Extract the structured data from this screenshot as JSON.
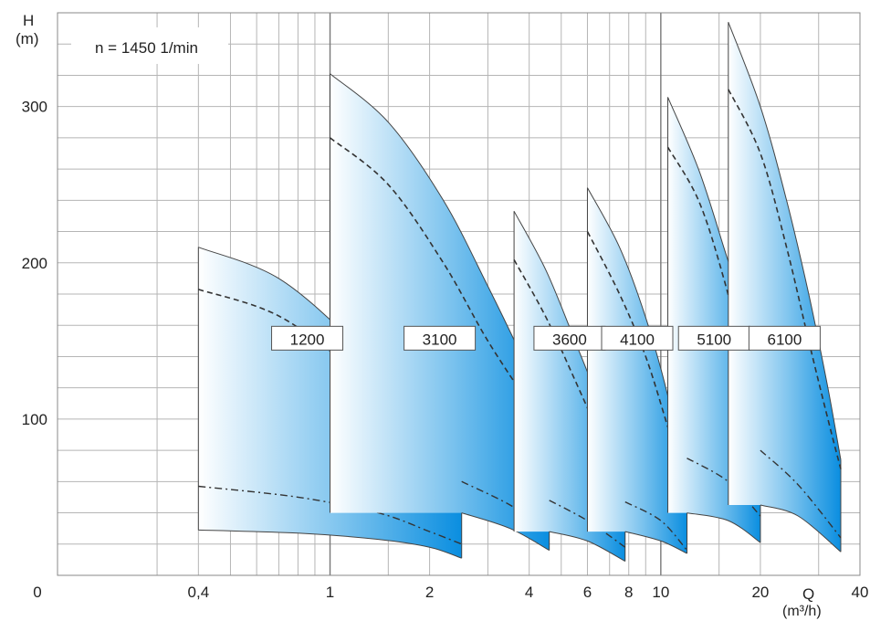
{
  "chart_data": {
    "type": "area",
    "speed_label": "n = 1450 1/min",
    "y_axis_title": "H",
    "y_axis_unit": "(m)",
    "x_axis_title": "Q",
    "x_axis_unit": "(m³/h)",
    "x_scale": "log",
    "xlim": [
      0.15,
      40
    ],
    "ylim": [
      0,
      360
    ],
    "x_ticks": [
      {
        "value": 0.15,
        "label": "0"
      },
      {
        "value": 0.4,
        "label": "0,4"
      },
      {
        "value": 1,
        "label": "1"
      },
      {
        "value": 2,
        "label": "2"
      },
      {
        "value": 4,
        "label": "4"
      },
      {
        "value": 6,
        "label": "6"
      },
      {
        "value": 8,
        "label": "8"
      },
      {
        "value": 10,
        "label": "10"
      },
      {
        "value": 20,
        "label": "20"
      },
      {
        "value": 40,
        "label": "40"
      }
    ],
    "y_ticks": [
      {
        "value": 100,
        "label": "100"
      },
      {
        "value": 200,
        "label": "200"
      },
      {
        "value": 300,
        "label": "300"
      }
    ],
    "x_grid": [
      0.3,
      0.4,
      0.5,
      0.6,
      0.7,
      0.8,
      0.9,
      1,
      1.5,
      2,
      3,
      4,
      5,
      6,
      7,
      8,
      9,
      10,
      15,
      20,
      30,
      40
    ],
    "y_grid_step": 20,
    "grid": true,
    "fill_color_light": "#ffffff",
    "fill_color_dark": "#0a8ee0",
    "series": [
      {
        "name": "1200",
        "q_min": 0.4,
        "q_max": 2.5,
        "upper": [
          [
            0.4,
            210
          ],
          [
            0.7,
            190
          ],
          [
            1.2,
            148
          ],
          [
            1.8,
            110
          ],
          [
            2.5,
            65
          ]
        ],
        "lower": [
          [
            0.4,
            29
          ],
          [
            0.8,
            27
          ],
          [
            1.4,
            23
          ],
          [
            2.0,
            18
          ],
          [
            2.5,
            11
          ]
        ],
        "dashed": [
          [
            0.4,
            183
          ],
          [
            0.7,
            166
          ],
          [
            1.2,
            130
          ],
          [
            1.8,
            95
          ],
          [
            2.5,
            55
          ]
        ],
        "dashdot": [
          [
            0.4,
            57
          ],
          [
            0.8,
            50
          ],
          [
            1.4,
            40
          ],
          [
            2.0,
            28
          ],
          [
            2.5,
            20
          ]
        ]
      },
      {
        "name": "3100",
        "q_min": 1.0,
        "q_max": 4.6,
        "upper": [
          [
            1.0,
            321
          ],
          [
            1.5,
            290
          ],
          [
            2.2,
            240
          ],
          [
            3.0,
            185
          ],
          [
            4.0,
            130
          ],
          [
            4.6,
            100
          ]
        ],
        "lower": [
          [
            2.5,
            40
          ],
          [
            3.5,
            30
          ],
          [
            4.6,
            16
          ]
        ],
        "dashed": [
          [
            1.0,
            280
          ],
          [
            1.5,
            250
          ],
          [
            2.2,
            200
          ],
          [
            3.0,
            150
          ],
          [
            4.0,
            110
          ],
          [
            4.6,
            95
          ]
        ],
        "dashdot": [
          [
            2.5,
            60
          ],
          [
            3.5,
            45
          ],
          [
            4.6,
            28
          ]
        ]
      },
      {
        "name": "3600",
        "q_min": 3.6,
        "q_max": 7.8,
        "upper": [
          [
            3.6,
            233
          ],
          [
            4.5,
            195
          ],
          [
            5.5,
            150
          ],
          [
            6.5,
            110
          ],
          [
            7.8,
            53
          ]
        ],
        "lower": [
          [
            4.6,
            28
          ],
          [
            6.0,
            22
          ],
          [
            7.8,
            9
          ]
        ],
        "dashed": [
          [
            3.6,
            202
          ],
          [
            4.5,
            165
          ],
          [
            5.5,
            125
          ],
          [
            6.5,
            90
          ],
          [
            7.8,
            48
          ]
        ],
        "dashdot": [
          [
            4.6,
            48
          ],
          [
            6.0,
            35
          ],
          [
            7.8,
            18
          ]
        ]
      },
      {
        "name": "4100",
        "q_min": 6.0,
        "q_max": 12.0,
        "upper": [
          [
            6.0,
            248
          ],
          [
            7.5,
            210
          ],
          [
            9.0,
            165
          ],
          [
            10.5,
            115
          ],
          [
            12.0,
            58
          ]
        ],
        "lower": [
          [
            7.8,
            28
          ],
          [
            10.0,
            22
          ],
          [
            12.0,
            14
          ]
        ],
        "dashed": [
          [
            6.0,
            220
          ],
          [
            7.5,
            180
          ],
          [
            9.0,
            140
          ],
          [
            10.5,
            95
          ],
          [
            12.0,
            55
          ]
        ],
        "dashdot": [
          [
            7.8,
            47
          ],
          [
            10.0,
            35
          ],
          [
            12.0,
            16
          ]
        ]
      },
      {
        "name": "5100",
        "q_min": 10.5,
        "q_max": 20.0,
        "upper": [
          [
            10.5,
            306
          ],
          [
            13.0,
            260
          ],
          [
            15.5,
            210
          ],
          [
            18.0,
            165
          ],
          [
            20.0,
            120
          ]
        ],
        "lower": [
          [
            12.0,
            40
          ],
          [
            16.0,
            35
          ],
          [
            20.0,
            21
          ]
        ],
        "dashed": [
          [
            10.5,
            274
          ],
          [
            13.0,
            240
          ],
          [
            15.5,
            190
          ],
          [
            18.0,
            135
          ],
          [
            20.0,
            100
          ]
        ],
        "dashdot": [
          [
            12.0,
            75
          ],
          [
            16.0,
            60
          ],
          [
            20.0,
            38
          ]
        ]
      },
      {
        "name": "6100",
        "q_min": 16.0,
        "q_max": 35.0,
        "upper": [
          [
            16.0,
            354
          ],
          [
            20.0,
            300
          ],
          [
            24.0,
            240
          ],
          [
            28.0,
            180
          ],
          [
            32.0,
            120
          ],
          [
            35.0,
            74
          ]
        ],
        "lower": [
          [
            20.0,
            45
          ],
          [
            26.0,
            38
          ],
          [
            35.0,
            15
          ]
        ],
        "dashed": [
          [
            16.0,
            311
          ],
          [
            20.0,
            270
          ],
          [
            24.0,
            210
          ],
          [
            28.0,
            150
          ],
          [
            32.0,
            100
          ],
          [
            35.0,
            68
          ]
        ],
        "dashdot": [
          [
            20.0,
            80
          ],
          [
            26.0,
            58
          ],
          [
            35.0,
            24
          ]
        ]
      }
    ]
  }
}
